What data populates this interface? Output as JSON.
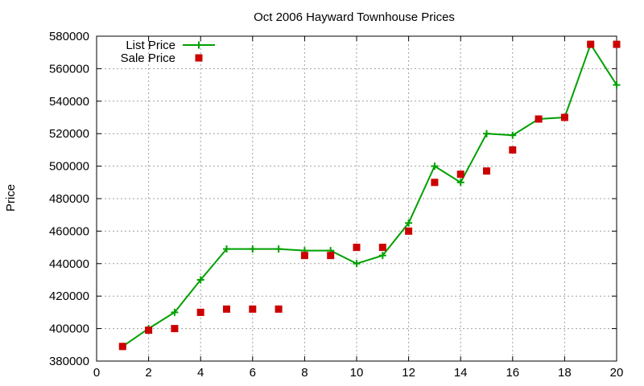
{
  "chart_data": {
    "type": "line",
    "title": "Oct 2006 Hayward Townhouse Prices",
    "xlabel": "",
    "ylabel": "Price",
    "xlim": [
      0,
      20
    ],
    "ylim": [
      380000,
      580000
    ],
    "x_ticks": [
      0,
      2,
      4,
      6,
      8,
      10,
      12,
      14,
      16,
      18,
      20
    ],
    "y_ticks": [
      380000,
      400000,
      420000,
      440000,
      460000,
      480000,
      500000,
      520000,
      540000,
      560000,
      580000
    ],
    "grid": true,
    "legend_position": "top-left",
    "series": [
      {
        "name": "List Price",
        "style": "line+cross",
        "color": "#00a000",
        "points": [
          {
            "x": 1,
            "y": 389000
          },
          {
            "x": 2,
            "y": 400000
          },
          {
            "x": 3,
            "y": 410000
          },
          {
            "x": 4,
            "y": 430000
          },
          {
            "x": 5,
            "y": 449000
          },
          {
            "x": 6,
            "y": 449000
          },
          {
            "x": 7,
            "y": 449000
          },
          {
            "x": 8,
            "y": 448000
          },
          {
            "x": 9,
            "y": 448000
          },
          {
            "x": 10,
            "y": 440000
          },
          {
            "x": 11,
            "y": 445000
          },
          {
            "x": 12,
            "y": 465000
          },
          {
            "x": 13,
            "y": 500000
          },
          {
            "x": 14,
            "y": 490000
          },
          {
            "x": 15,
            "y": 520000
          },
          {
            "x": 16,
            "y": 519000
          },
          {
            "x": 17,
            "y": 529000
          },
          {
            "x": 18,
            "y": 530000
          },
          {
            "x": 19,
            "y": 575000
          },
          {
            "x": 20,
            "y": 550000
          }
        ]
      },
      {
        "name": "Sale Price",
        "style": "square",
        "color": "#cc0000",
        "points": [
          {
            "x": 1,
            "y": 389000
          },
          {
            "x": 2,
            "y": 399000
          },
          {
            "x": 3,
            "y": 400000
          },
          {
            "x": 4,
            "y": 410000
          },
          {
            "x": 5,
            "y": 412000
          },
          {
            "x": 6,
            "y": 412000
          },
          {
            "x": 7,
            "y": 412000
          },
          {
            "x": 8,
            "y": 445000
          },
          {
            "x": 9,
            "y": 445000
          },
          {
            "x": 10,
            "y": 450000
          },
          {
            "x": 11,
            "y": 450000
          },
          {
            "x": 12,
            "y": 460000
          },
          {
            "x": 13,
            "y": 490000
          },
          {
            "x": 14,
            "y": 495000
          },
          {
            "x": 15,
            "y": 497000
          },
          {
            "x": 16,
            "y": 510000
          },
          {
            "x": 17,
            "y": 529000
          },
          {
            "x": 18,
            "y": 530000
          },
          {
            "x": 19,
            "y": 575000
          },
          {
            "x": 20,
            "y": 575000
          }
        ]
      }
    ]
  }
}
